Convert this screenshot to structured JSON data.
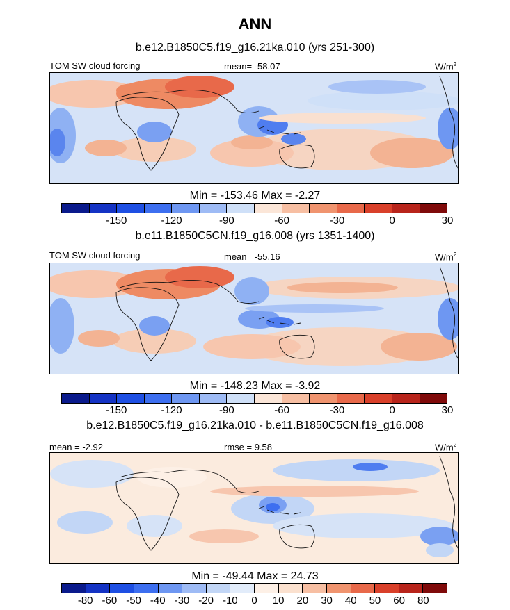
{
  "title": "ANN",
  "panels": [
    {
      "title": "b.e12.B1850C5.f19_g16.21ka.010 (yrs 251-300)",
      "left_label": "TOM SW cloud forcing",
      "center_label": "mean= -58.07",
      "unit": "W/m",
      "unit_sup": "2",
      "minmax": "Min = -153.46  Max =  -2.27",
      "colorbar_ticks": [
        "-150",
        "-120",
        "-90",
        "-60",
        "-30",
        "0",
        "30"
      ]
    },
    {
      "title": "b.e11.B1850C5CN.f19_g16.008 (yrs 1351-1400)",
      "left_label": "TOM SW cloud forcing",
      "center_label": "mean= -55.16",
      "unit": "W/m",
      "unit_sup": "2",
      "minmax": "Min = -148.23  Max =  -3.92",
      "colorbar_ticks": [
        "-150",
        "-120",
        "-90",
        "-60",
        "-30",
        "0",
        "30"
      ]
    },
    {
      "title": "b.e12.B1850C5.f19_g16.21ka.010 - b.e11.B1850C5CN.f19_g16.008",
      "left_label": "mean =  -2.92",
      "center_label": "rmse =   9.58",
      "unit": "W/m",
      "unit_sup": "2",
      "minmax": "Min = -49.44  Max =  24.73",
      "colorbar_ticks": [
        "-80",
        "-60",
        "-50",
        "-40",
        "-30",
        "-20",
        "-10",
        "0",
        "10",
        "20",
        "30",
        "40",
        "50",
        "60",
        "80"
      ]
    }
  ],
  "colors": {
    "abs_scale": [
      "#0a1a8c",
      "#1433c4",
      "#1e4fe3",
      "#3d6ff0",
      "#6e97f2",
      "#9ebbf5",
      "#cfe0f8",
      "#fbe6d8",
      "#f7bfa3",
      "#f0946f",
      "#e8694a",
      "#d9402a",
      "#b8241b",
      "#7f0a0a"
    ],
    "diff_scale": [
      "#0a1a8c",
      "#1433c4",
      "#1e4fe3",
      "#3d6ff0",
      "#6e97f2",
      "#9ebbf5",
      "#c2d6f6",
      "#e2ecfa",
      "#fdf0e6",
      "#fbe1cf",
      "#f7bfa3",
      "#f0946f",
      "#e8694a",
      "#d9402a",
      "#b8241b",
      "#7f0a0a"
    ],
    "diff_scale_note": ""
  }
}
